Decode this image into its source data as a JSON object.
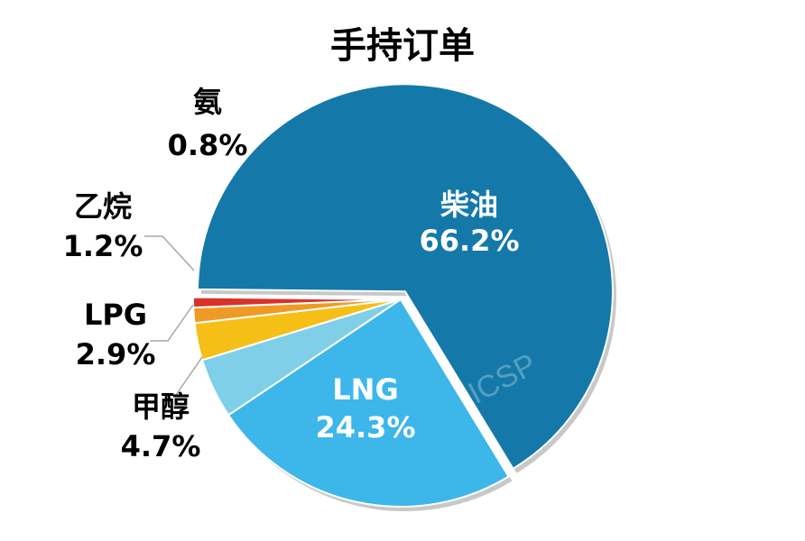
{
  "chart_data": {
    "type": "pie",
    "title": "手持订单",
    "watermark": "ICSP",
    "slices": [
      {
        "label": "柴油",
        "value": 66.2,
        "pct_text": "66.2%",
        "color": "#1479a8"
      },
      {
        "label": "LNG",
        "value": 24.3,
        "pct_text": "24.3%",
        "color": "#3db6ea"
      },
      {
        "label": "甲醇",
        "value": 4.7,
        "pct_text": "4.7%",
        "color": "#7fcfe9"
      },
      {
        "label": "LPG",
        "value": 2.9,
        "pct_text": "2.9%",
        "color": "#f5bf17"
      },
      {
        "label": "乙烷",
        "value": 1.2,
        "pct_text": "1.2%",
        "color": "#f09a26"
      },
      {
        "label": "氨",
        "value": 0.8,
        "pct_text": "0.8%",
        "color": "#d8322a"
      }
    ]
  }
}
